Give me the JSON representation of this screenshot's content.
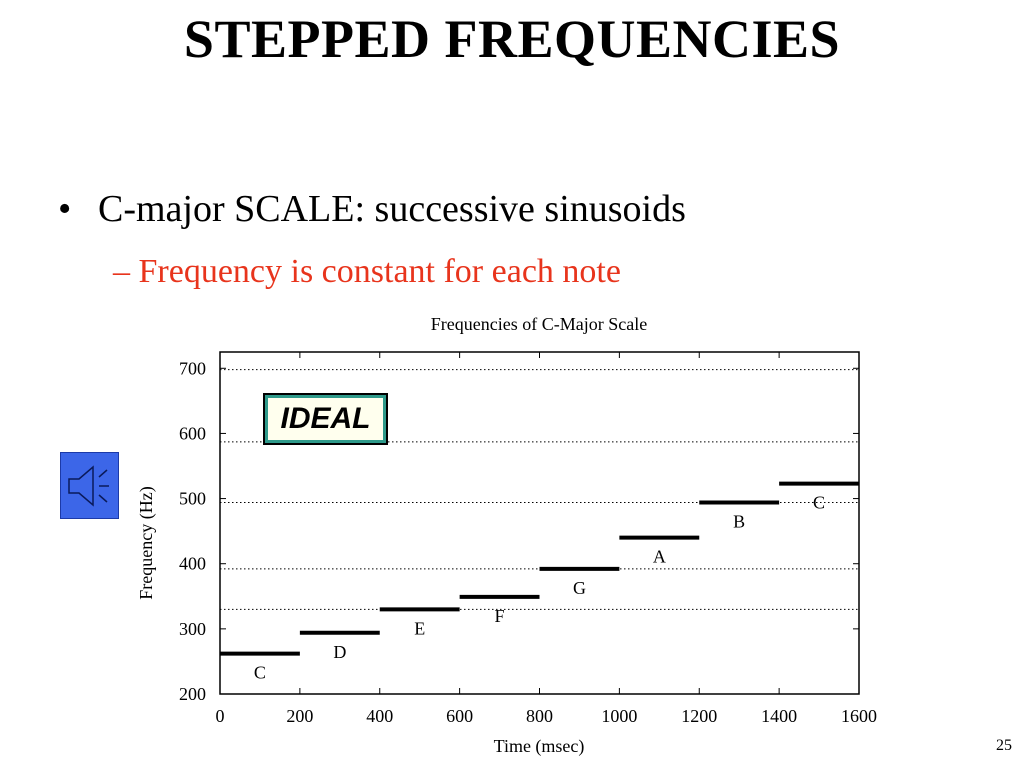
{
  "slide": {
    "title": "STEPPED FREQUENCIES",
    "bullet": "C-major SCALE: successive sinusoids",
    "sub_bullet": "– Frequency is constant for each note",
    "page_number": "25",
    "colors": {
      "sub_bullet": "#e8341c",
      "speaker_button": "#3c66e8"
    },
    "speaker_icon": "speaker-icon"
  },
  "chart_data": {
    "type": "line",
    "title": "Frequencies of C-Major Scale",
    "xlabel": "Time (msec)",
    "ylabel": "Frequency (Hz)",
    "xlim": [
      0,
      1600
    ],
    "ylim": [
      200,
      725
    ],
    "x_ticks": [
      0,
      200,
      400,
      600,
      800,
      1000,
      1200,
      1400,
      1600
    ],
    "y_ticks": [
      200,
      300,
      400,
      500,
      600,
      700
    ],
    "reference_lines_hz": [
      330,
      392,
      494,
      587,
      698
    ],
    "annotation": "IDEAL",
    "notes": [
      {
        "note": "C",
        "start": 0,
        "end": 200,
        "freq": 262
      },
      {
        "note": "D",
        "start": 200,
        "end": 400,
        "freq": 294
      },
      {
        "note": "E",
        "start": 400,
        "end": 600,
        "freq": 330
      },
      {
        "note": "F",
        "start": 600,
        "end": 800,
        "freq": 349
      },
      {
        "note": "G",
        "start": 800,
        "end": 1000,
        "freq": 392
      },
      {
        "note": "A",
        "start": 1000,
        "end": 1200,
        "freq": 440
      },
      {
        "note": "B",
        "start": 1200,
        "end": 1400,
        "freq": 494
      },
      {
        "note": "C",
        "start": 1400,
        "end": 1600,
        "freq": 523
      }
    ]
  }
}
